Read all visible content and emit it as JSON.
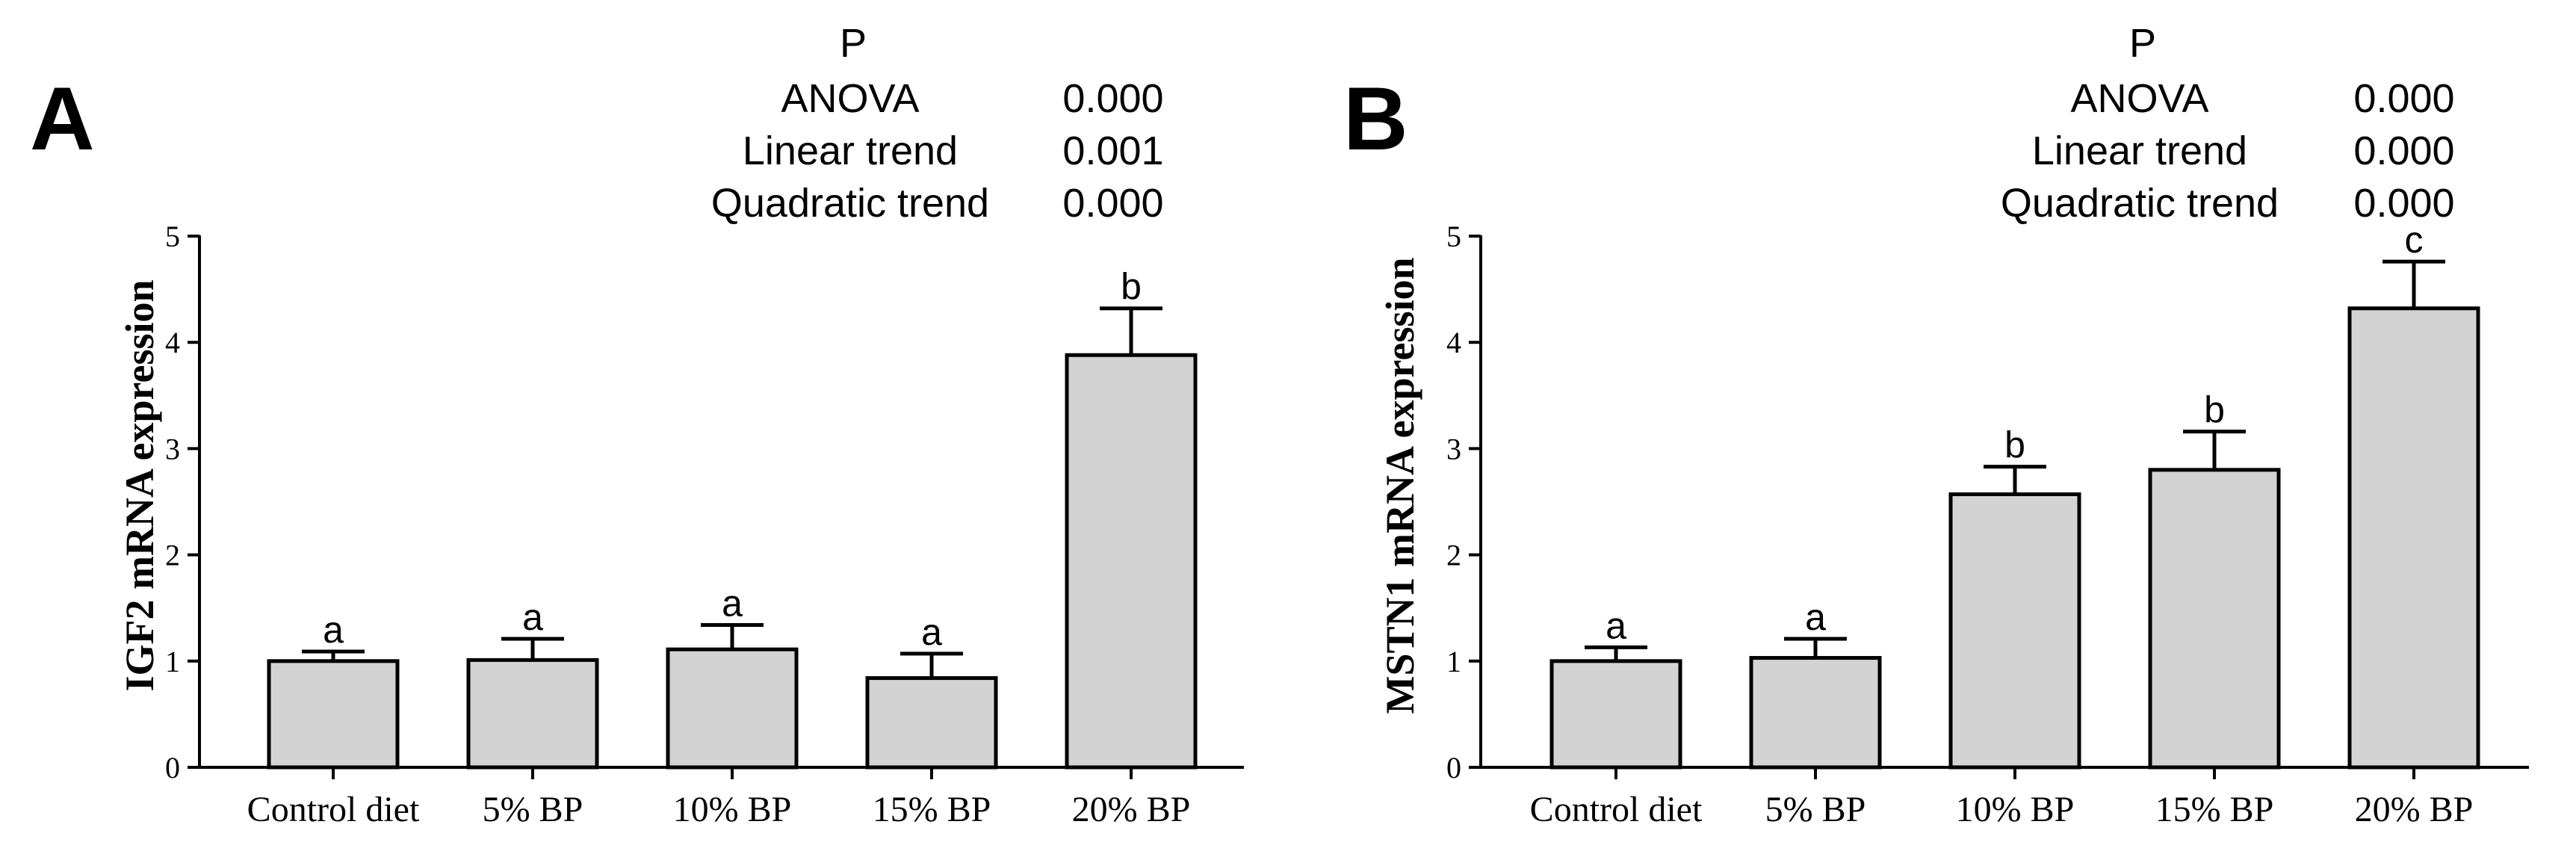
{
  "colors": {
    "bar_fill": "#d3d3d3",
    "stroke": "#000000",
    "background": "#ffffff"
  },
  "chart_data": [
    {
      "type": "bar",
      "panel_label": "A",
      "categories": [
        "Control diet",
        "5% BP",
        "10% BP",
        "15% BP",
        "20% BP"
      ],
      "values": [
        1.0,
        1.01,
        1.11,
        0.84,
        3.88
      ],
      "errors": [
        0.09,
        0.2,
        0.23,
        0.23,
        0.44
      ],
      "letters": [
        "a",
        "a",
        "a",
        "a",
        "b"
      ],
      "title": "",
      "xlabel": "",
      "ylabel": "IGF2 mRNA expression",
      "ylim": [
        0,
        5
      ],
      "yticks": [
        "0",
        "1",
        "2",
        "3",
        "4",
        "5"
      ],
      "stats": {
        "header": "P",
        "rows": [
          {
            "label": "ANOVA",
            "value": "0.000"
          },
          {
            "label": "Linear trend",
            "value": "0.001"
          },
          {
            "label": "Quadratic trend",
            "value": "0.000"
          }
        ]
      }
    },
    {
      "type": "bar",
      "panel_label": "B",
      "categories": [
        "Control diet",
        "5% BP",
        "10% BP",
        "15% BP",
        "20% BP"
      ],
      "values": [
        1.0,
        1.03,
        2.57,
        2.8,
        4.32
      ],
      "errors": [
        0.13,
        0.18,
        0.26,
        0.36,
        0.44
      ],
      "letters": [
        "a",
        "a",
        "b",
        "b",
        "c"
      ],
      "title": "",
      "xlabel": "",
      "ylabel": "MSTN1 mRNA expression",
      "ylim": [
        0,
        5
      ],
      "yticks": [
        "0",
        "1",
        "2",
        "3",
        "4",
        "5"
      ],
      "stats": {
        "header": "P",
        "rows": [
          {
            "label": "ANOVA",
            "value": "0.000"
          },
          {
            "label": "Linear trend",
            "value": "0.000"
          },
          {
            "label": "Quadratic trend",
            "value": "0.000"
          }
        ]
      }
    }
  ]
}
